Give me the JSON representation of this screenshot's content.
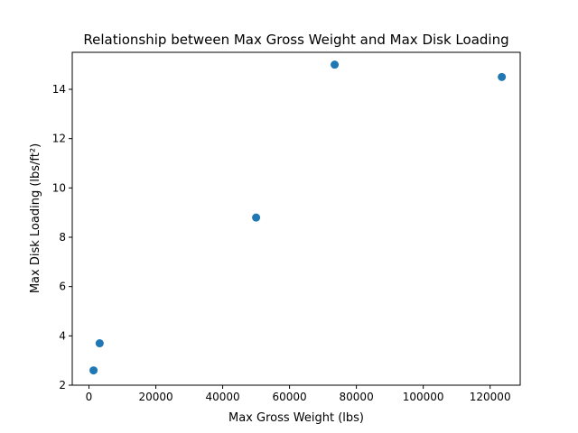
{
  "chart_data": {
    "type": "scatter",
    "title": "Relationship between Max Gross Weight and Max Disk Loading",
    "xlabel": "Max Gross Weight (lbs)",
    "ylabel": "Max Disk Loading (lbs/ft²)",
    "xlim": [
      -5000,
      129000
    ],
    "ylim": [
      2.0,
      15.5
    ],
    "x_ticks": [
      0,
      20000,
      40000,
      60000,
      80000,
      100000,
      120000
    ],
    "x_tick_labels": [
      "0",
      "20000",
      "40000",
      "60000",
      "80000",
      "100000",
      "120000"
    ],
    "y_ticks": [
      2,
      4,
      6,
      8,
      10,
      12,
      14
    ],
    "y_tick_labels": [
      "2",
      "4",
      "6",
      "8",
      "10",
      "12",
      "14"
    ],
    "grid": false,
    "marker_color": "#1f77b4",
    "points": [
      {
        "x": 1370,
        "y": 2.6
      },
      {
        "x": 3200,
        "y": 3.7
      },
      {
        "x": 50000,
        "y": 8.8
      },
      {
        "x": 73500,
        "y": 15.0
      },
      {
        "x": 123500,
        "y": 14.5
      }
    ]
  }
}
